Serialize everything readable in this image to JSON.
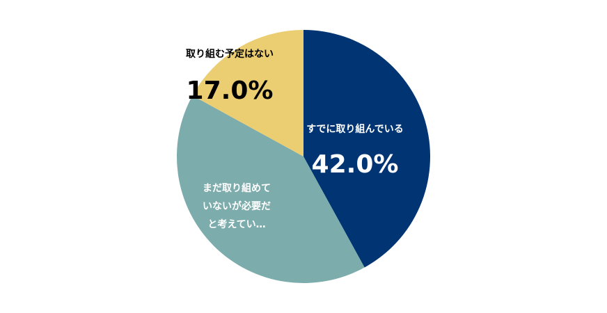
{
  "chart_data": {
    "type": "pie",
    "title": "",
    "start_angle_deg": 0,
    "direction": "clockwise",
    "slices": [
      {
        "label": "すでに取り組んでいる",
        "label_lines": [
          "すでに取り組んでいる"
        ],
        "value": 42.0,
        "value_label": "42.0%",
        "color": "#003473",
        "text_color": "#ffffff"
      },
      {
        "label": "まだ取り組めていないが必要だと考えてい…",
        "label_lines": [
          "まだ取り組めて",
          "いないが必要だ",
          "と考えてい…"
        ],
        "value": 41.0,
        "value_label": "",
        "color": "#7cacab",
        "text_color": "#ffffff"
      },
      {
        "label": "取り組む予定はない",
        "label_lines": [
          "取り組む予定はない"
        ],
        "value": 17.0,
        "value_label": "17.0%",
        "color": "#ebcd72",
        "text_color": "#000000"
      }
    ]
  }
}
